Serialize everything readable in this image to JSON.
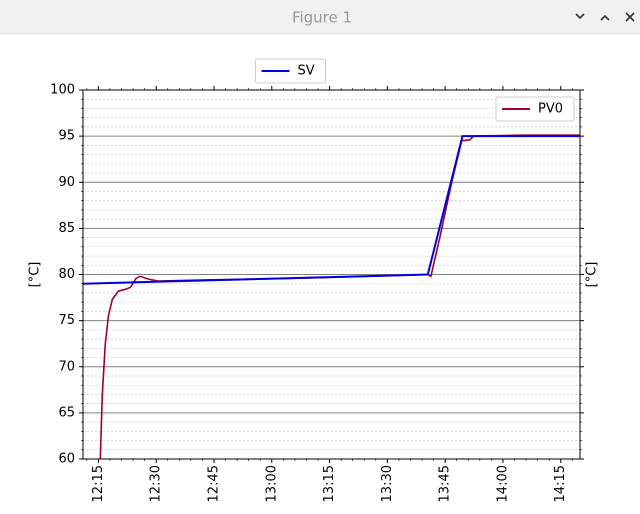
{
  "window_title": "Figure 1",
  "chart_data": {
    "type": "line",
    "ylabel": "[°C]",
    "y2label": "[°C]",
    "xlim": [
      731,
      860
    ],
    "xticks": [
      {
        "value": 735,
        "label": "12:15"
      },
      {
        "value": 750,
        "label": "12:30"
      },
      {
        "value": 765,
        "label": "12:45"
      },
      {
        "value": 780,
        "label": "13:00"
      },
      {
        "value": 795,
        "label": "13:15"
      },
      {
        "value": 810,
        "label": "13:30"
      },
      {
        "value": 825,
        "label": "13:45"
      },
      {
        "value": 840,
        "label": "14:00"
      },
      {
        "value": 855,
        "label": "14:15"
      }
    ],
    "ylim": [
      60,
      100
    ],
    "yticks": [
      60,
      65,
      70,
      75,
      80,
      85,
      90,
      95,
      100
    ],
    "grid": true,
    "minor_grid": true,
    "series": [
      {
        "name": "PV0",
        "color": "#a00030",
        "legend": "upper right",
        "x": [
          735.5,
          736,
          736.8,
          737.6,
          738.6,
          740.2,
          742,
          743.3,
          744.8,
          745.9,
          748,
          750.5,
          761.4,
          787.3,
          813.2,
          820.5,
          821.3,
          823.6,
          826.7,
          829.3,
          831.4,
          832.4,
          844.3,
          860
        ],
        "values": [
          60,
          67,
          72.5,
          75.5,
          77.3,
          78.2,
          78.4,
          78.6,
          79.6,
          79.8,
          79.5,
          79.3,
          79.4,
          79.6,
          79.9,
          80.0,
          79.8,
          84,
          90,
          94.5,
          94.6,
          95.0,
          95.1,
          95.1
        ]
      },
      {
        "name": "SV",
        "color": "#0000dd",
        "legend": "upper center outside",
        "x": [
          731,
          820.5,
          829.5,
          860
        ],
        "values": [
          79.0,
          80.0,
          95.0,
          95.0
        ]
      }
    ]
  }
}
